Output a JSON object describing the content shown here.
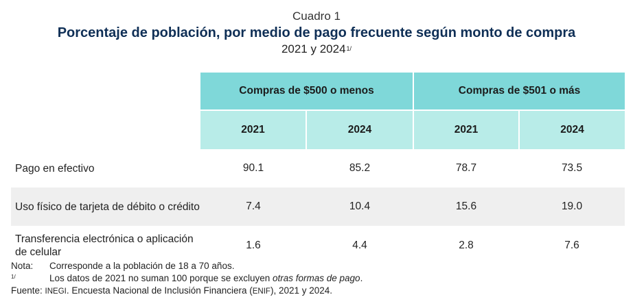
{
  "caption": {
    "label": "Cuadro 1",
    "title": "Porcentaje de población, por medio de pago frecuente según monto de compra",
    "subtitle": "2021 y 2024",
    "subtitle_sup": "1/"
  },
  "table": {
    "groups": [
      "Compras de $500 o menos",
      "Compras de $501 o más"
    ],
    "years": [
      "2021",
      "2024",
      "2021",
      "2024"
    ],
    "rows": [
      {
        "label": "Pago en efectivo",
        "values": [
          "90.1",
          "85.2",
          "78.7",
          "73.5"
        ]
      },
      {
        "label": "Uso físico de tarjeta de débito o crédito",
        "values": [
          "7.4",
          "10.4",
          "15.6",
          "19.0"
        ]
      },
      {
        "label": "Transferencia electrónica o aplicación de celular",
        "values": [
          "1.6",
          "4.4",
          "2.8",
          "7.6"
        ]
      }
    ]
  },
  "notes": {
    "note_key": "Nota:",
    "note_text": "Corresponde a la población de 18 a 70 años.",
    "footnote_key": "1/",
    "footnote_text_a": "Los datos de 2021 no suman 100 porque se excluyen ",
    "footnote_text_italic": "otras formas de pago",
    "footnote_text_b": ".",
    "source_key": "Fuente: ",
    "source_org": "INEGI",
    "source_text_a": ". Encuesta Nacional de Inclusión Financiera (",
    "source_abbr": "ENIF",
    "source_text_b": "), 2021 y 2024."
  }
}
